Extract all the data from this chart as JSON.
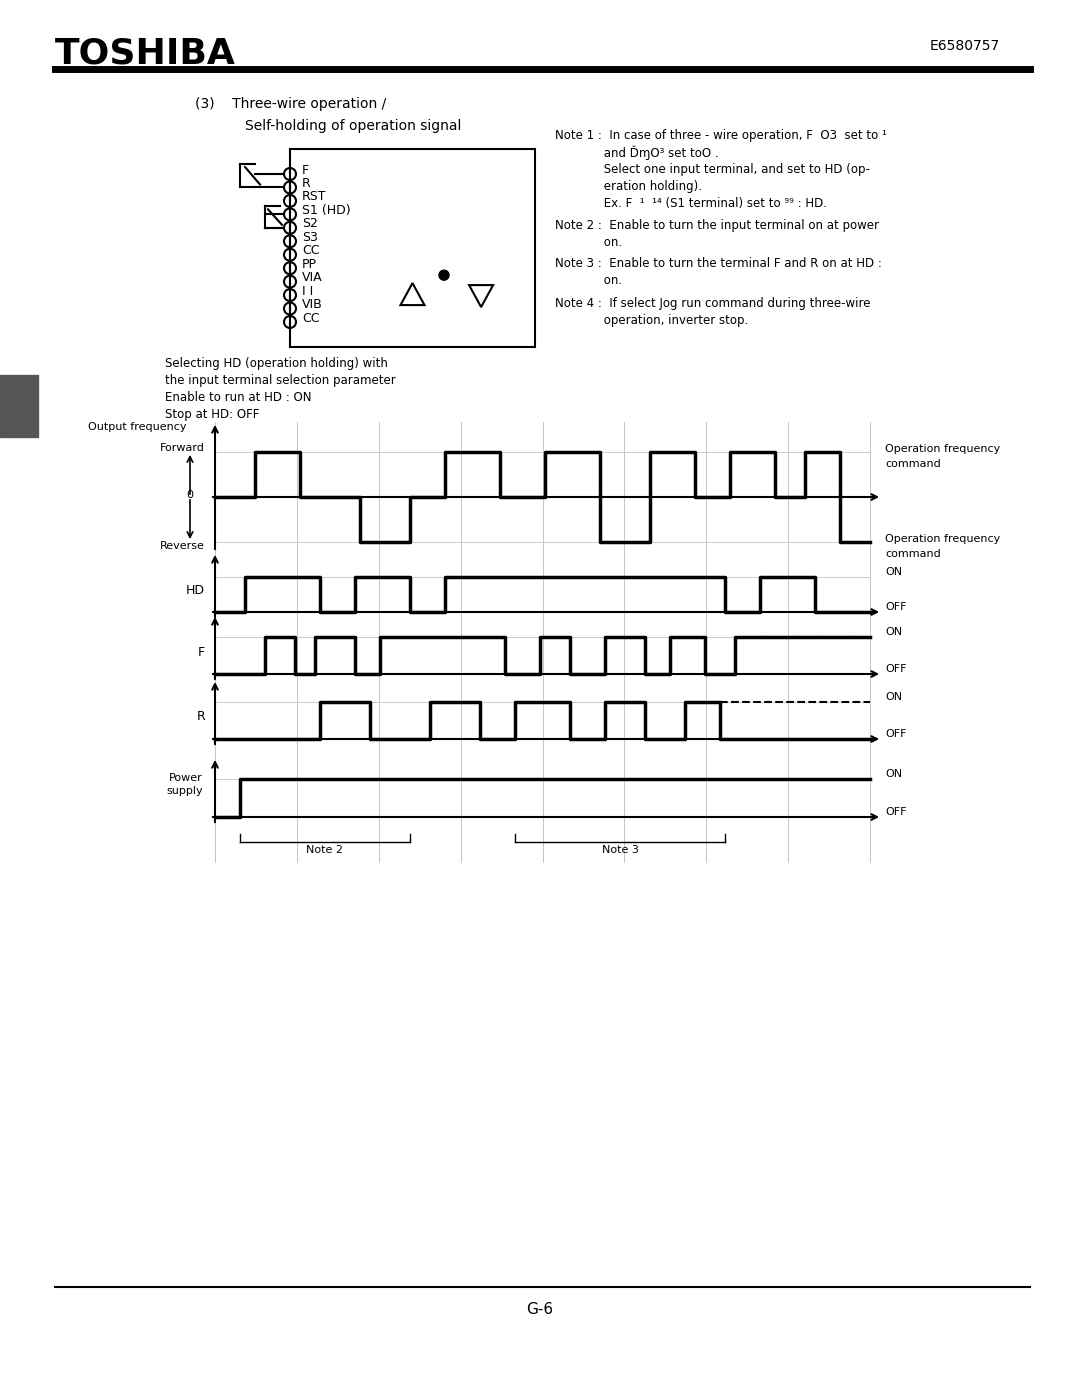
{
  "title_company": "TOSHIBA",
  "title_code": "E6580757",
  "page_number": "G-6",
  "section_number": "(3)",
  "section_title": "Three-wire operation /",
  "section_subtitle": "Self-holding of operation signal",
  "terminals": [
    "F",
    "R",
    "RST",
    "S1 (HD)",
    "S2",
    "S3",
    "CC",
    "PP",
    "VIA",
    "I I",
    "VIB",
    "CC"
  ],
  "note1_a": "Note 1 :  In case of three - wire operation, F  Ο3  set to ¹",
  "note1_b": "             and ĎɱΟ³ set toΟ .",
  "note1_c": "             Select one input terminal, and set to HD (op-",
  "note1_d": "             eration holding).",
  "note1_e": "             Ex. F  ¹  ¹⁴ (S1 terminal) set to ⁹⁹ : HD.",
  "note2_a": "Note 2 :  Enable to turn the input terminal on at power",
  "note2_b": "             on.",
  "note3_a": "Note 3 :  Enable to turn the terminal F and R on at HD :",
  "note3_b": "             on.",
  "note4_a": "Note 4 :  If select Jog run command during three-wire",
  "note4_b": "             operation, inverter stop.",
  "caption1": "Selecting HD (operation holding) with",
  "caption2": "the input terminal selection parameter",
  "caption3": "Enable to run at HD : ON",
  "caption4": "Stop at HD: OFF",
  "bg_color": "#ffffff"
}
